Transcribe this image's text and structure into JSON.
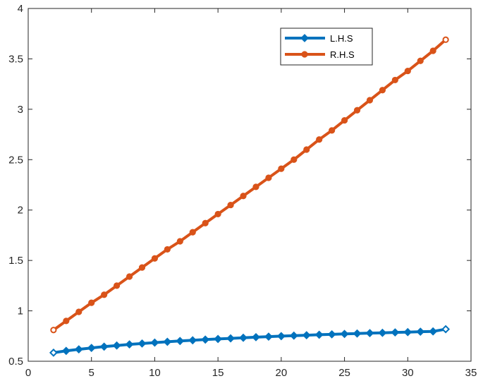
{
  "chart_data": {
    "type": "line",
    "title": "",
    "xlabel": "",
    "ylabel": "",
    "xlim": [
      0,
      35
    ],
    "ylim": [
      0.5,
      4
    ],
    "xticks": [
      0,
      5,
      10,
      15,
      20,
      25,
      30,
      35
    ],
    "yticks": [
      0.5,
      1,
      1.5,
      2,
      2.5,
      3,
      3.5,
      4
    ],
    "grid": false,
    "legend_position": "top-right",
    "x": [
      2,
      3,
      4,
      5,
      6,
      7,
      8,
      9,
      10,
      11,
      12,
      13,
      14,
      15,
      16,
      17,
      18,
      19,
      20,
      21,
      22,
      23,
      24,
      25,
      26,
      27,
      28,
      29,
      30,
      31,
      32,
      33
    ],
    "series": [
      {
        "name": "L.H.S",
        "color": "#0072BD",
        "marker": "diamond",
        "values": [
          0.585,
          0.603,
          0.618,
          0.632,
          0.645,
          0.656,
          0.667,
          0.676,
          0.685,
          0.693,
          0.701,
          0.708,
          0.715,
          0.721,
          0.727,
          0.733,
          0.739,
          0.744,
          0.749,
          0.754,
          0.758,
          0.763,
          0.767,
          0.771,
          0.775,
          0.779,
          0.782,
          0.786,
          0.789,
          0.793,
          0.796,
          0.818
        ]
      },
      {
        "name": "R.H.S",
        "color": "#D95319",
        "marker": "circle",
        "values": [
          0.81,
          0.9,
          0.99,
          1.08,
          1.16,
          1.25,
          1.34,
          1.43,
          1.52,
          1.61,
          1.69,
          1.78,
          1.87,
          1.96,
          2.05,
          2.14,
          2.23,
          2.32,
          2.41,
          2.5,
          2.6,
          2.7,
          2.79,
          2.89,
          2.99,
          3.09,
          3.19,
          3.29,
          3.38,
          3.48,
          3.58,
          3.69
        ]
      }
    ]
  }
}
